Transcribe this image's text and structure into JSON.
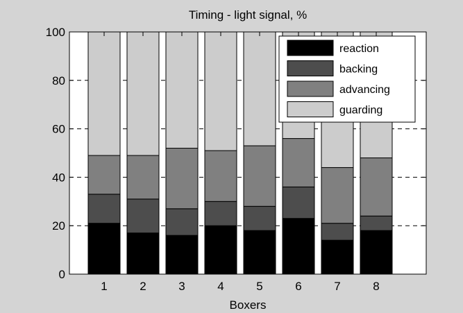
{
  "chart_data": {
    "type": "bar",
    "stacked": true,
    "title": "Timing - light signal, %",
    "xlabel": "Boxers",
    "ylabel": "",
    "ylim": [
      0,
      100
    ],
    "yticks": [
      0,
      20,
      40,
      60,
      80,
      100
    ],
    "categories": [
      "1",
      "2",
      "3",
      "4",
      "5",
      "6",
      "7",
      "8"
    ],
    "grid": "dashed-major-y",
    "legend_position": "top-right",
    "series": [
      {
        "name": "reaction",
        "color": "#000000",
        "values": [
          21,
          17,
          16,
          20,
          18,
          23,
          14,
          18
        ]
      },
      {
        "name": "backing",
        "color": "#4d4d4d",
        "values": [
          12,
          14,
          11,
          10,
          10,
          13,
          7,
          6
        ]
      },
      {
        "name": "advancing",
        "color": "#808080",
        "values": [
          16,
          18,
          25,
          21,
          25,
          20,
          23,
          24
        ]
      },
      {
        "name": "guarding",
        "color": "#cccccc",
        "values": [
          51,
          51,
          48,
          49,
          47,
          44,
          56,
          52
        ]
      }
    ]
  }
}
